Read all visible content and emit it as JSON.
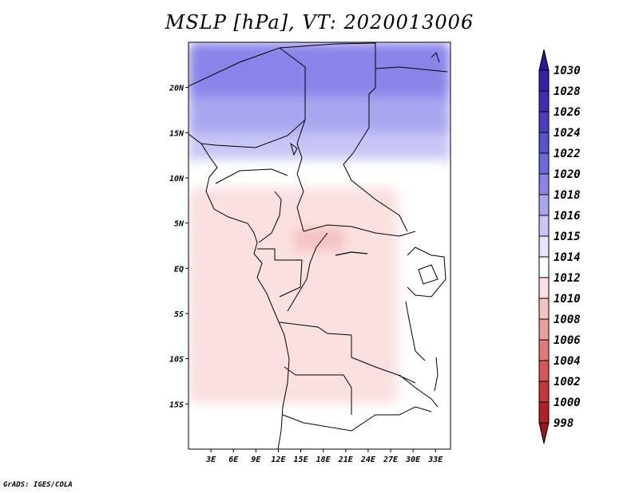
{
  "title": "MSLP [hPa], VT: 2020013006",
  "footer": "GrADS: IGES/COLA",
  "chart_data": {
    "type": "heatmap",
    "variable": "MSLP",
    "units": "hPa",
    "valid_time": "2020013006",
    "x_axis": {
      "range": [
        0,
        35
      ],
      "ticks": [
        {
          "value": 3,
          "label": "3E"
        },
        {
          "value": 6,
          "label": "6E"
        },
        {
          "value": 9,
          "label": "9E"
        },
        {
          "value": 12,
          "label": "12E"
        },
        {
          "value": 15,
          "label": "15E"
        },
        {
          "value": 18,
          "label": "18E"
        },
        {
          "value": 21,
          "label": "21E"
        },
        {
          "value": 24,
          "label": "24E"
        },
        {
          "value": 27,
          "label": "27E"
        },
        {
          "value": 30,
          "label": "30E"
        },
        {
          "value": 33,
          "label": "33E"
        }
      ]
    },
    "y_axis": {
      "range": [
        -20,
        25
      ],
      "ticks": [
        {
          "value": 20,
          "label": "20N"
        },
        {
          "value": 15,
          "label": "15N"
        },
        {
          "value": 10,
          "label": "10N"
        },
        {
          "value": 5,
          "label": "5N"
        },
        {
          "value": 0,
          "label": "EQ"
        },
        {
          "value": -5,
          "label": "5S"
        },
        {
          "value": -10,
          "label": "10S"
        },
        {
          "value": -15,
          "label": "15S"
        }
      ]
    },
    "colorbar": {
      "levels": [
        "1030",
        "1028",
        "1026",
        "1024",
        "1022",
        "1020",
        "1018",
        "1016",
        "1015",
        "1014",
        "1012",
        "1010",
        "1008",
        "1006",
        "1004",
        "1002",
        "1000",
        "998"
      ],
      "colors": [
        "#27199b",
        "#3323aa",
        "#3d2eba",
        "#4a3ec4",
        "#5a52cf",
        "#6e67dc",
        "#8a84e8",
        "#a9a6f0",
        "#c7c6f6",
        "#e4e4fb",
        "#ffffff",
        "#fbe0e0",
        "#f5c2c2",
        "#ec9e9e",
        "#e37878",
        "#d85656",
        "#c83636",
        "#b52020",
        "#9c1414"
      ]
    },
    "regions": [
      {
        "label": "1024",
        "lon": [
          12,
          21
        ],
        "lat": [
          21.5,
          25
        ]
      },
      {
        "label": "1022",
        "lon": [
          5,
          33
        ],
        "lat": [
          19.5,
          25
        ]
      },
      {
        "label": "1020",
        "lon": [
          0,
          35
        ],
        "lat": [
          17,
          25
        ]
      },
      {
        "label": "1018",
        "lon": [
          0,
          35
        ],
        "lat": [
          13,
          19
        ]
      },
      {
        "label": "1016",
        "lon": [
          0,
          35
        ],
        "lat": [
          10,
          15
        ]
      },
      {
        "label": "1014",
        "lon": [
          0,
          35
        ],
        "lat": [
          -20,
          12
        ]
      },
      {
        "label": "1012",
        "lon": [
          0,
          28
        ],
        "lat": [
          -15,
          9
        ]
      },
      {
        "label": "1010",
        "lon": [
          14,
          21
        ],
        "lat": [
          2,
          4.5
        ]
      }
    ],
    "grid": false,
    "legend_position": "right"
  }
}
